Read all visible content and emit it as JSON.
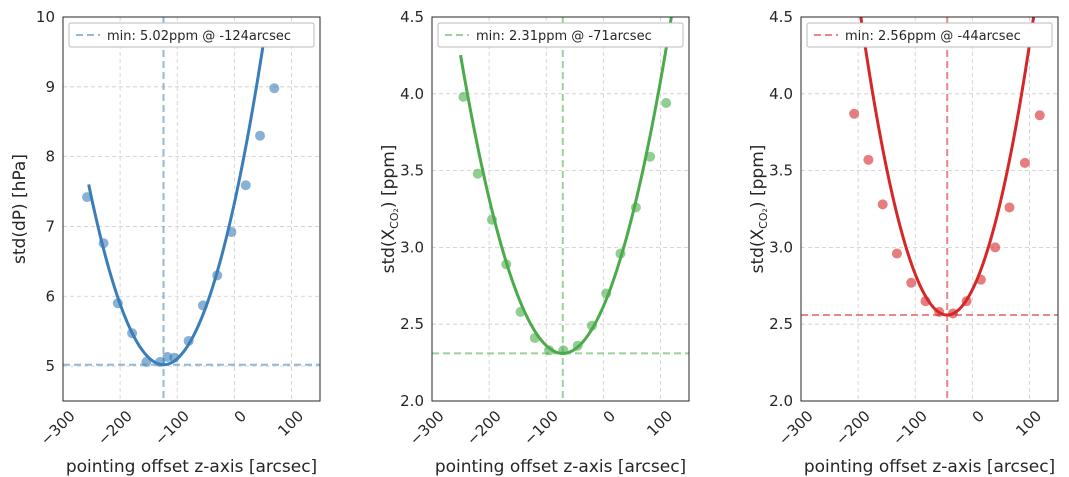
{
  "chart_data": [
    {
      "type": "scatter",
      "xlabel": "pointing offset z-axis [arcsec]",
      "ylabel": "std(dP) [hPa]",
      "ylabel_sub": "",
      "xlim": [
        -300,
        150
      ],
      "ylim": [
        4.5,
        10
      ],
      "xticks": [
        -300,
        -200,
        -100,
        0,
        100
      ],
      "xtick_labels": [
        "−300",
        "−200",
        "−100",
        "0",
        "100"
      ],
      "yticks": [
        5,
        6,
        7,
        8,
        9,
        10
      ],
      "ytick_labels": [
        "5",
        "6",
        "7",
        "8",
        "9",
        "10"
      ],
      "grid": true,
      "legend_position": "upper-center",
      "color": "#3a7db8",
      "series": [
        {
          "kind": "points",
          "x": [
            -258,
            -229,
            -204,
            -179,
            -154,
            -130,
            -117,
            -105,
            -80,
            -55,
            -30,
            -5,
            20,
            45,
            70
          ],
          "y": [
            7.42,
            6.76,
            5.9,
            5.47,
            5.06,
            5.06,
            5.13,
            5.12,
            5.36,
            5.87,
            6.3,
            6.92,
            7.59,
            8.3,
            8.98
          ]
        },
        {
          "kind": "fit",
          "name": "min: 5.02ppm @ -124arcsec",
          "a": 0.0001504,
          "min_x": -124,
          "min_y": 5.02,
          "x_range": [
            -255,
            54
          ]
        }
      ]
    },
    {
      "type": "scatter",
      "xlabel": "pointing offset z-axis [arcsec]",
      "ylabel": "std(X",
      "ylabel_sub": "CO₂",
      "ylabel_suffix": ") [ppm]",
      "xlim": [
        -300,
        150
      ],
      "ylim": [
        2.0,
        4.5
      ],
      "xticks": [
        -300,
        -200,
        -100,
        0,
        100
      ],
      "xtick_labels": [
        "−300",
        "−200",
        "−100",
        "0",
        "100"
      ],
      "yticks": [
        2.0,
        2.5,
        3.0,
        3.5,
        4.0,
        4.5
      ],
      "ytick_labels": [
        "2.0",
        "2.5",
        "3.0",
        "3.5",
        "4.0",
        "4.5"
      ],
      "grid": true,
      "legend_position": "upper-center",
      "color": "#4aab4a",
      "series": [
        {
          "kind": "points",
          "x": [
            -245,
            -220,
            -195,
            -170,
            -145,
            -120,
            -95,
            -70,
            -45,
            -20,
            5,
            30,
            57,
            82,
            110
          ],
          "y": [
            3.98,
            3.48,
            3.18,
            2.89,
            2.58,
            2.41,
            2.33,
            2.33,
            2.36,
            2.49,
            2.7,
            2.96,
            3.26,
            3.59,
            3.94
          ]
        },
        {
          "kind": "fit",
          "name": "min: 2.31ppm @ -71arcsec",
          "a": 6.06e-05,
          "min_x": -71,
          "min_y": 2.31,
          "x_range": [
            -250,
            132
          ]
        }
      ]
    },
    {
      "type": "scatter",
      "xlabel": "pointing offset z-axis [arcsec]",
      "ylabel": "std(X",
      "ylabel_sub": "CO₂",
      "ylabel_suffix": ") [ppm]",
      "xlim": [
        -300,
        150
      ],
      "ylim": [
        2.0,
        4.5
      ],
      "xticks": [
        -300,
        -200,
        -100,
        0,
        100
      ],
      "xtick_labels": [
        "−300",
        "−200",
        "−100",
        "0",
        "100"
      ],
      "yticks": [
        2.0,
        2.5,
        3.0,
        3.5,
        4.0,
        4.5
      ],
      "ytick_labels": [
        "2.0",
        "2.5",
        "3.0",
        "3.5",
        "4.0",
        "4.5"
      ],
      "grid": true,
      "legend_position": "upper-center",
      "color": "#d62728",
      "series": [
        {
          "kind": "points",
          "x": [
            -207,
            -182,
            -157,
            -132,
            -107,
            -82,
            -58,
            -34,
            -10,
            15,
            40,
            65,
            92,
            118
          ],
          "y": [
            3.87,
            3.57,
            3.28,
            2.96,
            2.77,
            2.65,
            2.58,
            2.57,
            2.65,
            2.79,
            3.0,
            3.26,
            3.55,
            3.86
          ]
        },
        {
          "kind": "fit",
          "name": "min: 2.56ppm @ -44arcsec",
          "a": 8.48e-05,
          "min_x": -44,
          "min_y": 2.56,
          "x_range": [
            -220,
            150
          ]
        }
      ]
    }
  ]
}
